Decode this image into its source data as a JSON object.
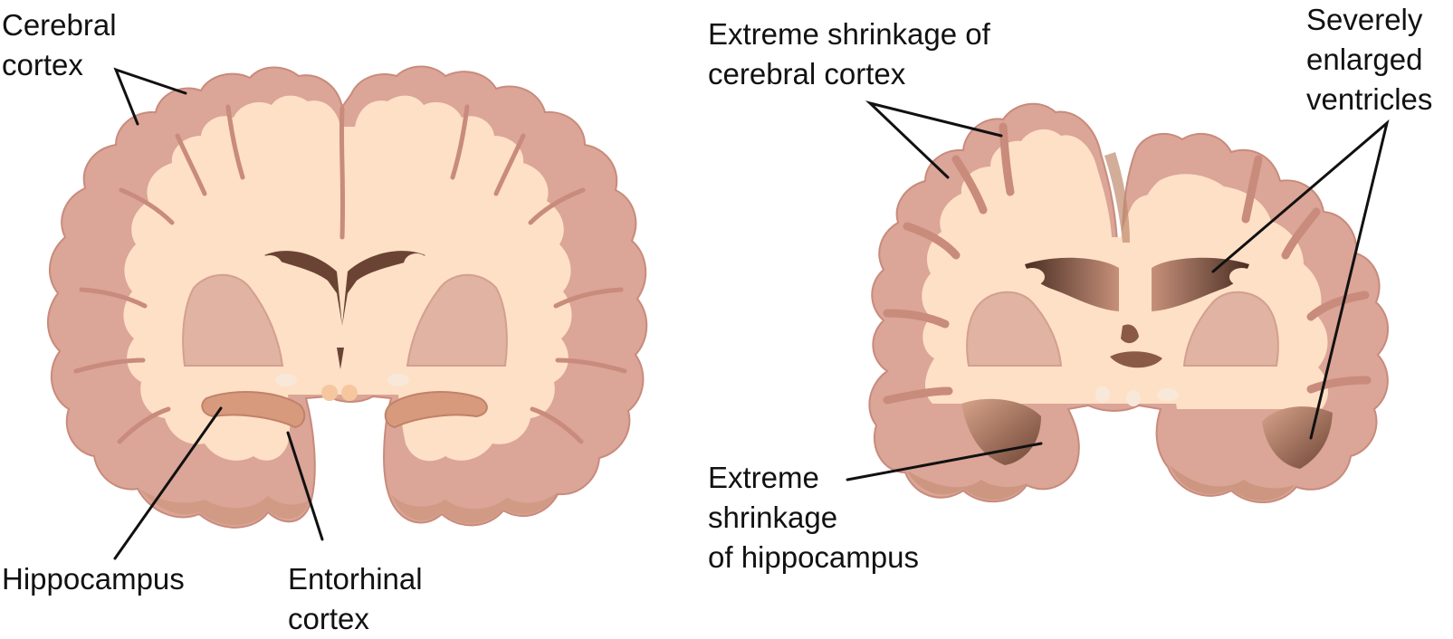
{
  "labels": {
    "cerebral_cortex": "Cerebral\ncortex",
    "hippocampus": "Hippocampus",
    "entorhinal_cortex": "Entorhinal\ncortex",
    "extreme_shrinkage_cortex": "Extreme shrinkage of\ncerebral cortex",
    "severely_enlarged_ventricles": "Severely\nenlarged\nventricles",
    "extreme_shrinkage_hippocampus": "Extreme\nshrinkage\nof hippocampus"
  },
  "colors": {
    "cortex": "#dba597",
    "cortex_edge": "#c88b7c",
    "white_matter": "#fde0c6",
    "deep_nuclei": "#e0b3a2",
    "ventricle_dark": "#5b3b2e",
    "ventricle_light": "#c6907a",
    "shadow": "#bf8a6d",
    "line": "#111111"
  }
}
